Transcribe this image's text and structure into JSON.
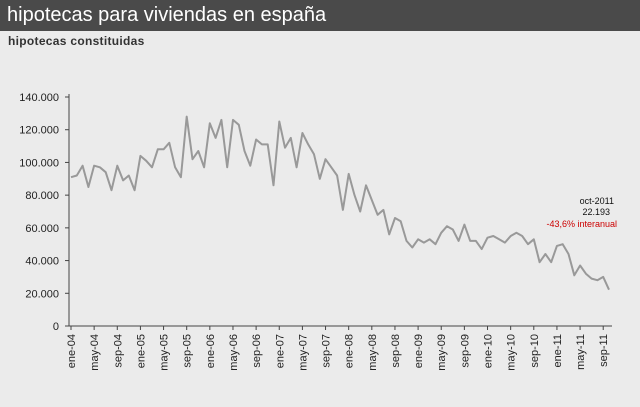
{
  "header": {
    "title": "hipotecas para viviendas en españa",
    "subtitle": "hipotecas  constituidas"
  },
  "colors": {
    "line": "#999999",
    "annotation_pct": "#cc0000",
    "title_bar": "#4a4a4a"
  },
  "chart_data": {
    "type": "line",
    "title": "hipotecas para viviendas en españa",
    "subtitle": "hipotecas constituidas",
    "xlabel": "",
    "ylabel": "",
    "ylim": [
      0,
      140000
    ],
    "yticks": [
      0,
      20000,
      40000,
      60000,
      80000,
      100000,
      120000,
      140000
    ],
    "ytick_labels": [
      "0",
      "20.000",
      "40.000",
      "60.000",
      "80.000",
      "100.000",
      "120.000",
      "140.000"
    ],
    "grid": false,
    "x_tick_labels": [
      "ene-04",
      "may-04",
      "sep-04",
      "ene-05",
      "may-05",
      "sep-05",
      "ene-06",
      "may-06",
      "sep-06",
      "ene-07",
      "may-07",
      "sep-07",
      "ene-08",
      "may-08",
      "sep-08",
      "ene-09",
      "may-09",
      "sep-09",
      "ene-10",
      "may-10",
      "sep-10",
      "ene-11",
      "may-11",
      "sep-11"
    ],
    "x_start": "ene-04",
    "x_end": "oct-11",
    "series": [
      {
        "values": [
          91000,
          92000,
          98000,
          85000,
          98000,
          97000,
          94000,
          83000,
          98000,
          89000,
          92000,
          83000,
          104000,
          101000,
          97000,
          108000,
          108000,
          112000,
          97000,
          91000,
          128000,
          102000,
          107000,
          97000,
          124000,
          115000,
          126000,
          97000,
          126000,
          123000,
          107000,
          98000,
          114000,
          111000,
          111000,
          86000,
          125000,
          109000,
          115000,
          97000,
          118000,
          111000,
          105000,
          90000,
          102000,
          97000,
          92000,
          71000,
          93000,
          80000,
          70000,
          86000,
          77000,
          68000,
          71000,
          56000,
          66000,
          64000,
          52000,
          48000,
          53000,
          51000,
          53000,
          50000,
          57000,
          61000,
          59000,
          52000,
          62000,
          52000,
          52000,
          47000,
          54000,
          55000,
          53000,
          51000,
          55000,
          57000,
          55000,
          50000,
          53000,
          39000,
          44000,
          39000,
          49000,
          50000,
          44000,
          31000,
          37000,
          32000,
          29000,
          28000,
          30000,
          22193
        ]
      }
    ],
    "annotation": {
      "label": "oct-2011",
      "value": "22.193",
      "change": "-43,6% interanual"
    }
  }
}
